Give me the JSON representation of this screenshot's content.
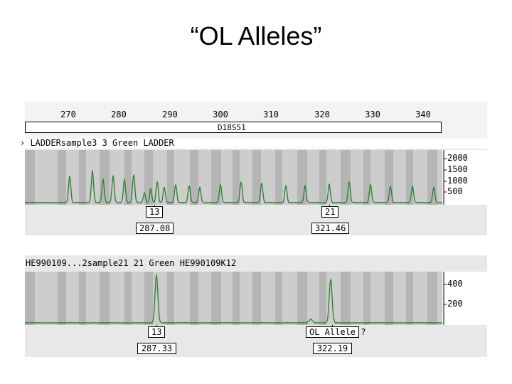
{
  "title": "“OL Alleles”",
  "ruler": {
    "ticks": [
      "270",
      "280",
      "290",
      "300",
      "310",
      "320",
      "330",
      "340"
    ],
    "marker": "D18S51"
  },
  "ladder_panel": {
    "label": "› LADDERsample3    3 Green  LADDER",
    "y_ticks": [
      "2000",
      "1500",
      "1000",
      "500"
    ],
    "callouts": [
      {
        "allele": "13",
        "size": "287.08"
      },
      {
        "allele": "21",
        "size": "321.46"
      }
    ]
  },
  "sample_panel": {
    "label": "HE990109...2sample21 21 Green  HE990109K12",
    "y_ticks": [
      "400",
      "200"
    ],
    "callouts": [
      {
        "allele": "13",
        "size": "287.33"
      },
      {
        "allele": "OL Allele ?",
        "size": "322.19"
      }
    ]
  },
  "colors": {
    "trace": "#2e7d2e",
    "bin_dark": "#b5b5b5",
    "bin_light": "#d4d4d4"
  }
}
